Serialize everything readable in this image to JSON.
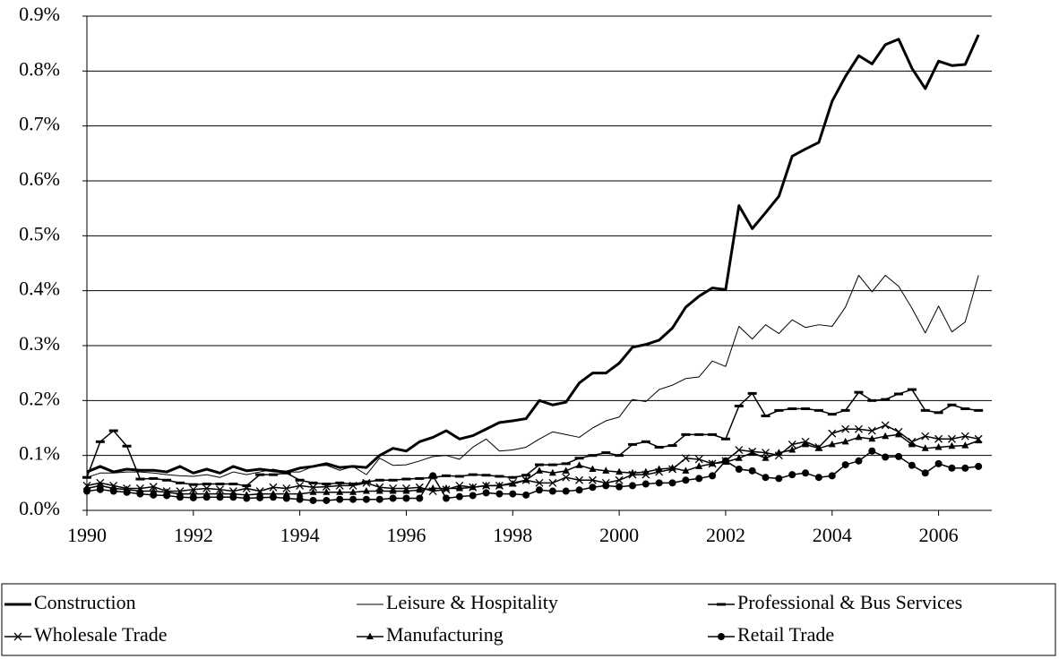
{
  "chart_data": {
    "type": "line",
    "x": [
      1990,
      1990.25,
      1990.5,
      1990.75,
      1991,
      1991.25,
      1991.5,
      1991.75,
      1992,
      1992.25,
      1992.5,
      1992.75,
      1993,
      1993.25,
      1993.5,
      1993.75,
      1994,
      1994.25,
      1994.5,
      1994.75,
      1995,
      1995.25,
      1995.5,
      1995.75,
      1996,
      1996.25,
      1996.5,
      1996.75,
      1997,
      1997.25,
      1997.5,
      1997.75,
      1998,
      1998.25,
      1998.5,
      1998.75,
      1999,
      1999.25,
      1999.5,
      1999.75,
      2000,
      2000.25,
      2000.5,
      2000.75,
      2001,
      2001.25,
      2001.5,
      2001.75,
      2002,
      2002.25,
      2002.5,
      2002.75,
      2003,
      2003.25,
      2003.5,
      2003.75,
      2004,
      2004.25,
      2004.5,
      2004.75,
      2005,
      2005.25,
      2005.5,
      2005.75,
      2006,
      2006.25,
      2006.5,
      2006.75
    ],
    "series": [
      {
        "name": "Construction",
        "color": "#000000",
        "line_width": 3,
        "marker": "none",
        "values": [
          0.07,
          0.08,
          0.07,
          0.075,
          0.073,
          0.073,
          0.07,
          0.08,
          0.068,
          0.075,
          0.068,
          0.08,
          0.072,
          0.075,
          0.072,
          0.07,
          0.077,
          0.08,
          0.085,
          0.078,
          0.08,
          0.078,
          0.1,
          0.113,
          0.108,
          0.125,
          0.133,
          0.145,
          0.13,
          0.136,
          0.148,
          0.16,
          0.163,
          0.167,
          0.2,
          0.192,
          0.197,
          0.232,
          0.25,
          0.25,
          0.268,
          0.297,
          0.302,
          0.31,
          0.332,
          0.37,
          0.39,
          0.405,
          0.402,
          0.555,
          0.513,
          0.542,
          0.572,
          0.645,
          0.658,
          0.67,
          0.745,
          0.79,
          0.828,
          0.813,
          0.848,
          0.858,
          0.805,
          0.768,
          0.818,
          0.81,
          0.812,
          0.866
        ]
      },
      {
        "name": "Leisure & Hospitality",
        "color": "#000000",
        "line_width": 1,
        "marker": "none",
        "values": [
          0.06,
          0.068,
          0.068,
          0.07,
          0.07,
          0.068,
          0.065,
          0.063,
          0.062,
          0.065,
          0.06,
          0.07,
          0.065,
          0.07,
          0.075,
          0.07,
          0.07,
          0.08,
          0.082,
          0.073,
          0.08,
          0.065,
          0.095,
          0.082,
          0.083,
          0.09,
          0.098,
          0.1,
          0.093,
          0.115,
          0.13,
          0.108,
          0.11,
          0.115,
          0.13,
          0.143,
          0.138,
          0.133,
          0.15,
          0.163,
          0.17,
          0.202,
          0.198,
          0.22,
          0.228,
          0.24,
          0.243,
          0.272,
          0.262,
          0.335,
          0.312,
          0.338,
          0.322,
          0.347,
          0.333,
          0.338,
          0.335,
          0.37,
          0.428,
          0.398,
          0.428,
          0.408,
          0.368,
          0.323,
          0.372,
          0.325,
          0.343,
          0.428
        ]
      },
      {
        "name": "Professional & Bus Services",
        "color": "#000000",
        "line_width": 1.5,
        "marker": "dash",
        "values": [
          0.06,
          0.125,
          0.145,
          0.117,
          0.057,
          0.058,
          0.055,
          0.05,
          0.047,
          0.048,
          0.048,
          0.048,
          0.045,
          0.065,
          0.065,
          0.068,
          0.055,
          0.05,
          0.048,
          0.05,
          0.048,
          0.052,
          0.055,
          0.055,
          0.057,
          0.058,
          0.06,
          0.063,
          0.062,
          0.065,
          0.064,
          0.062,
          0.06,
          0.064,
          0.083,
          0.083,
          0.085,
          0.095,
          0.1,
          0.105,
          0.1,
          0.12,
          0.125,
          0.115,
          0.118,
          0.138,
          0.138,
          0.138,
          0.13,
          0.19,
          0.213,
          0.172,
          0.182,
          0.185,
          0.185,
          0.182,
          0.175,
          0.182,
          0.215,
          0.2,
          0.202,
          0.212,
          0.22,
          0.182,
          0.178,
          0.192,
          0.185,
          0.182
        ]
      },
      {
        "name": "Wholesale Trade",
        "color": "#000000",
        "line_width": 1.5,
        "marker": "x",
        "values": [
          0.045,
          0.05,
          0.045,
          0.04,
          0.04,
          0.043,
          0.035,
          0.035,
          0.038,
          0.04,
          0.038,
          0.035,
          0.04,
          0.035,
          0.042,
          0.04,
          0.045,
          0.042,
          0.043,
          0.045,
          0.045,
          0.05,
          0.042,
          0.04,
          0.04,
          0.042,
          0.035,
          0.038,
          0.045,
          0.042,
          0.045,
          0.045,
          0.05,
          0.055,
          0.05,
          0.05,
          0.06,
          0.055,
          0.055,
          0.05,
          0.055,
          0.065,
          0.065,
          0.07,
          0.075,
          0.095,
          0.093,
          0.085,
          0.09,
          0.11,
          0.107,
          0.105,
          0.1,
          0.12,
          0.125,
          0.115,
          0.14,
          0.148,
          0.148,
          0.145,
          0.155,
          0.143,
          0.125,
          0.135,
          0.13,
          0.13,
          0.135,
          0.13
        ]
      },
      {
        "name": "Manufacturing",
        "color": "#000000",
        "line_width": 1.5,
        "marker": "triangle",
        "values": [
          0.04,
          0.045,
          0.04,
          0.038,
          0.035,
          0.035,
          0.033,
          0.03,
          0.03,
          0.03,
          0.03,
          0.03,
          0.028,
          0.03,
          0.03,
          0.03,
          0.03,
          0.033,
          0.033,
          0.033,
          0.033,
          0.035,
          0.035,
          0.035,
          0.035,
          0.037,
          0.04,
          0.04,
          0.04,
          0.042,
          0.045,
          0.045,
          0.048,
          0.055,
          0.072,
          0.068,
          0.072,
          0.082,
          0.075,
          0.072,
          0.07,
          0.068,
          0.07,
          0.075,
          0.077,
          0.072,
          0.08,
          0.085,
          0.088,
          0.095,
          0.105,
          0.095,
          0.105,
          0.11,
          0.12,
          0.113,
          0.12,
          0.125,
          0.133,
          0.13,
          0.135,
          0.138,
          0.12,
          0.113,
          0.115,
          0.117,
          0.118,
          0.127
        ]
      },
      {
        "name": "Retail Trade",
        "color": "#000000",
        "line_width": 1.5,
        "marker": "circle",
        "values": [
          0.035,
          0.038,
          0.035,
          0.033,
          0.03,
          0.028,
          0.027,
          0.024,
          0.023,
          0.024,
          0.024,
          0.024,
          0.022,
          0.023,
          0.024,
          0.022,
          0.02,
          0.018,
          0.018,
          0.02,
          0.02,
          0.02,
          0.02,
          0.022,
          0.022,
          0.022,
          0.063,
          0.022,
          0.025,
          0.027,
          0.032,
          0.03,
          0.03,
          0.028,
          0.037,
          0.035,
          0.035,
          0.037,
          0.042,
          0.045,
          0.043,
          0.045,
          0.048,
          0.05,
          0.05,
          0.055,
          0.058,
          0.063,
          0.09,
          0.075,
          0.072,
          0.06,
          0.058,
          0.065,
          0.068,
          0.06,
          0.063,
          0.083,
          0.09,
          0.108,
          0.097,
          0.098,
          0.082,
          0.068,
          0.085,
          0.077,
          0.077,
          0.08
        ]
      }
    ],
    "xlim": [
      1990,
      2007
    ],
    "xticks": [
      1990,
      1992,
      1994,
      1996,
      1998,
      2000,
      2002,
      2004,
      2006
    ],
    "ylim": [
      0,
      0.9
    ],
    "yticks": [
      {
        "value": 0,
        "label": "0.0%"
      },
      {
        "value": 0.1,
        "label": "0.1%"
      },
      {
        "value": 0.2,
        "label": "0.2%"
      },
      {
        "value": 0.3,
        "label": "0.3%"
      },
      {
        "value": 0.4,
        "label": "0.4%"
      },
      {
        "value": 0.5,
        "label": "0.5%"
      },
      {
        "value": 0.6,
        "label": "0.6%"
      },
      {
        "value": 0.7,
        "label": "0.7%"
      },
      {
        "value": 0.8,
        "label": "0.8%"
      },
      {
        "value": 0.9,
        "label": "0.9%"
      }
    ],
    "grid": true,
    "legend": "bottom"
  }
}
